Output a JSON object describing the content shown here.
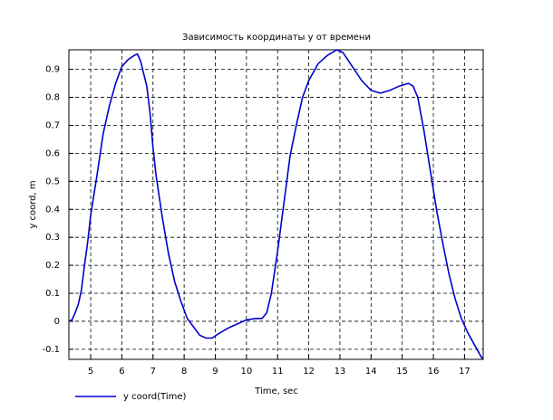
{
  "chart_data": {
    "type": "line",
    "title": "Зависимость координаты у от времени",
    "x_label": "Time, sec",
    "y_label": "y coord, m",
    "x": [
      4.3,
      4.4,
      4.5,
      4.6,
      4.7,
      4.8,
      4.9,
      5.0,
      5.2,
      5.4,
      5.6,
      5.8,
      6.0,
      6.2,
      6.4,
      6.5,
      6.6,
      6.8,
      6.9,
      7.0,
      7.1,
      7.3,
      7.5,
      7.7,
      7.9,
      8.1,
      8.3,
      8.5,
      8.7,
      8.9,
      9.1,
      9.4,
      9.7,
      10.0,
      10.3,
      10.5,
      10.65,
      10.8,
      11.0,
      11.2,
      11.4,
      11.6,
      11.8,
      12.0,
      12.3,
      12.6,
      12.9,
      13.1,
      13.4,
      13.7,
      14.0,
      14.3,
      14.6,
      14.9,
      15.2,
      15.35,
      15.5,
      15.7,
      15.9,
      16.1,
      16.3,
      16.5,
      16.7,
      16.9,
      17.1,
      17.3,
      17.5,
      17.58
    ],
    "series": [
      {
        "name": "y coord(Time)",
        "color": "#0000cc",
        "values": [
          0,
          0.005,
          0.03,
          0.06,
          0.11,
          0.2,
          0.28,
          0.38,
          0.52,
          0.67,
          0.77,
          0.85,
          0.91,
          0.935,
          0.95,
          0.955,
          0.93,
          0.84,
          0.75,
          0.62,
          0.52,
          0.37,
          0.24,
          0.14,
          0.07,
          0.01,
          -0.02,
          -0.05,
          -0.06,
          -0.06,
          -0.045,
          -0.025,
          -0.01,
          0.005,
          0.01,
          0.01,
          0.03,
          0.1,
          0.25,
          0.42,
          0.59,
          0.7,
          0.8,
          0.86,
          0.92,
          0.95,
          0.97,
          0.96,
          0.91,
          0.86,
          0.825,
          0.815,
          0.825,
          0.84,
          0.85,
          0.84,
          0.8,
          0.68,
          0.54,
          0.4,
          0.28,
          0.17,
          0.08,
          0.01,
          -0.04,
          -0.08,
          -0.12,
          -0.135
        ]
      }
    ],
    "xlim": [
      4.3,
      17.6
    ],
    "ylim": [
      -0.136,
      0.97
    ],
    "xticks": [
      5,
      6,
      7,
      8,
      9,
      10,
      11,
      12,
      13,
      14,
      15,
      16,
      17
    ],
    "yticks": [
      -0.1,
      0,
      0.1,
      0.2,
      0.3,
      0.4,
      0.5,
      0.6,
      0.7,
      0.8,
      0.9
    ],
    "grid": true,
    "legend": "bottom-left"
  }
}
